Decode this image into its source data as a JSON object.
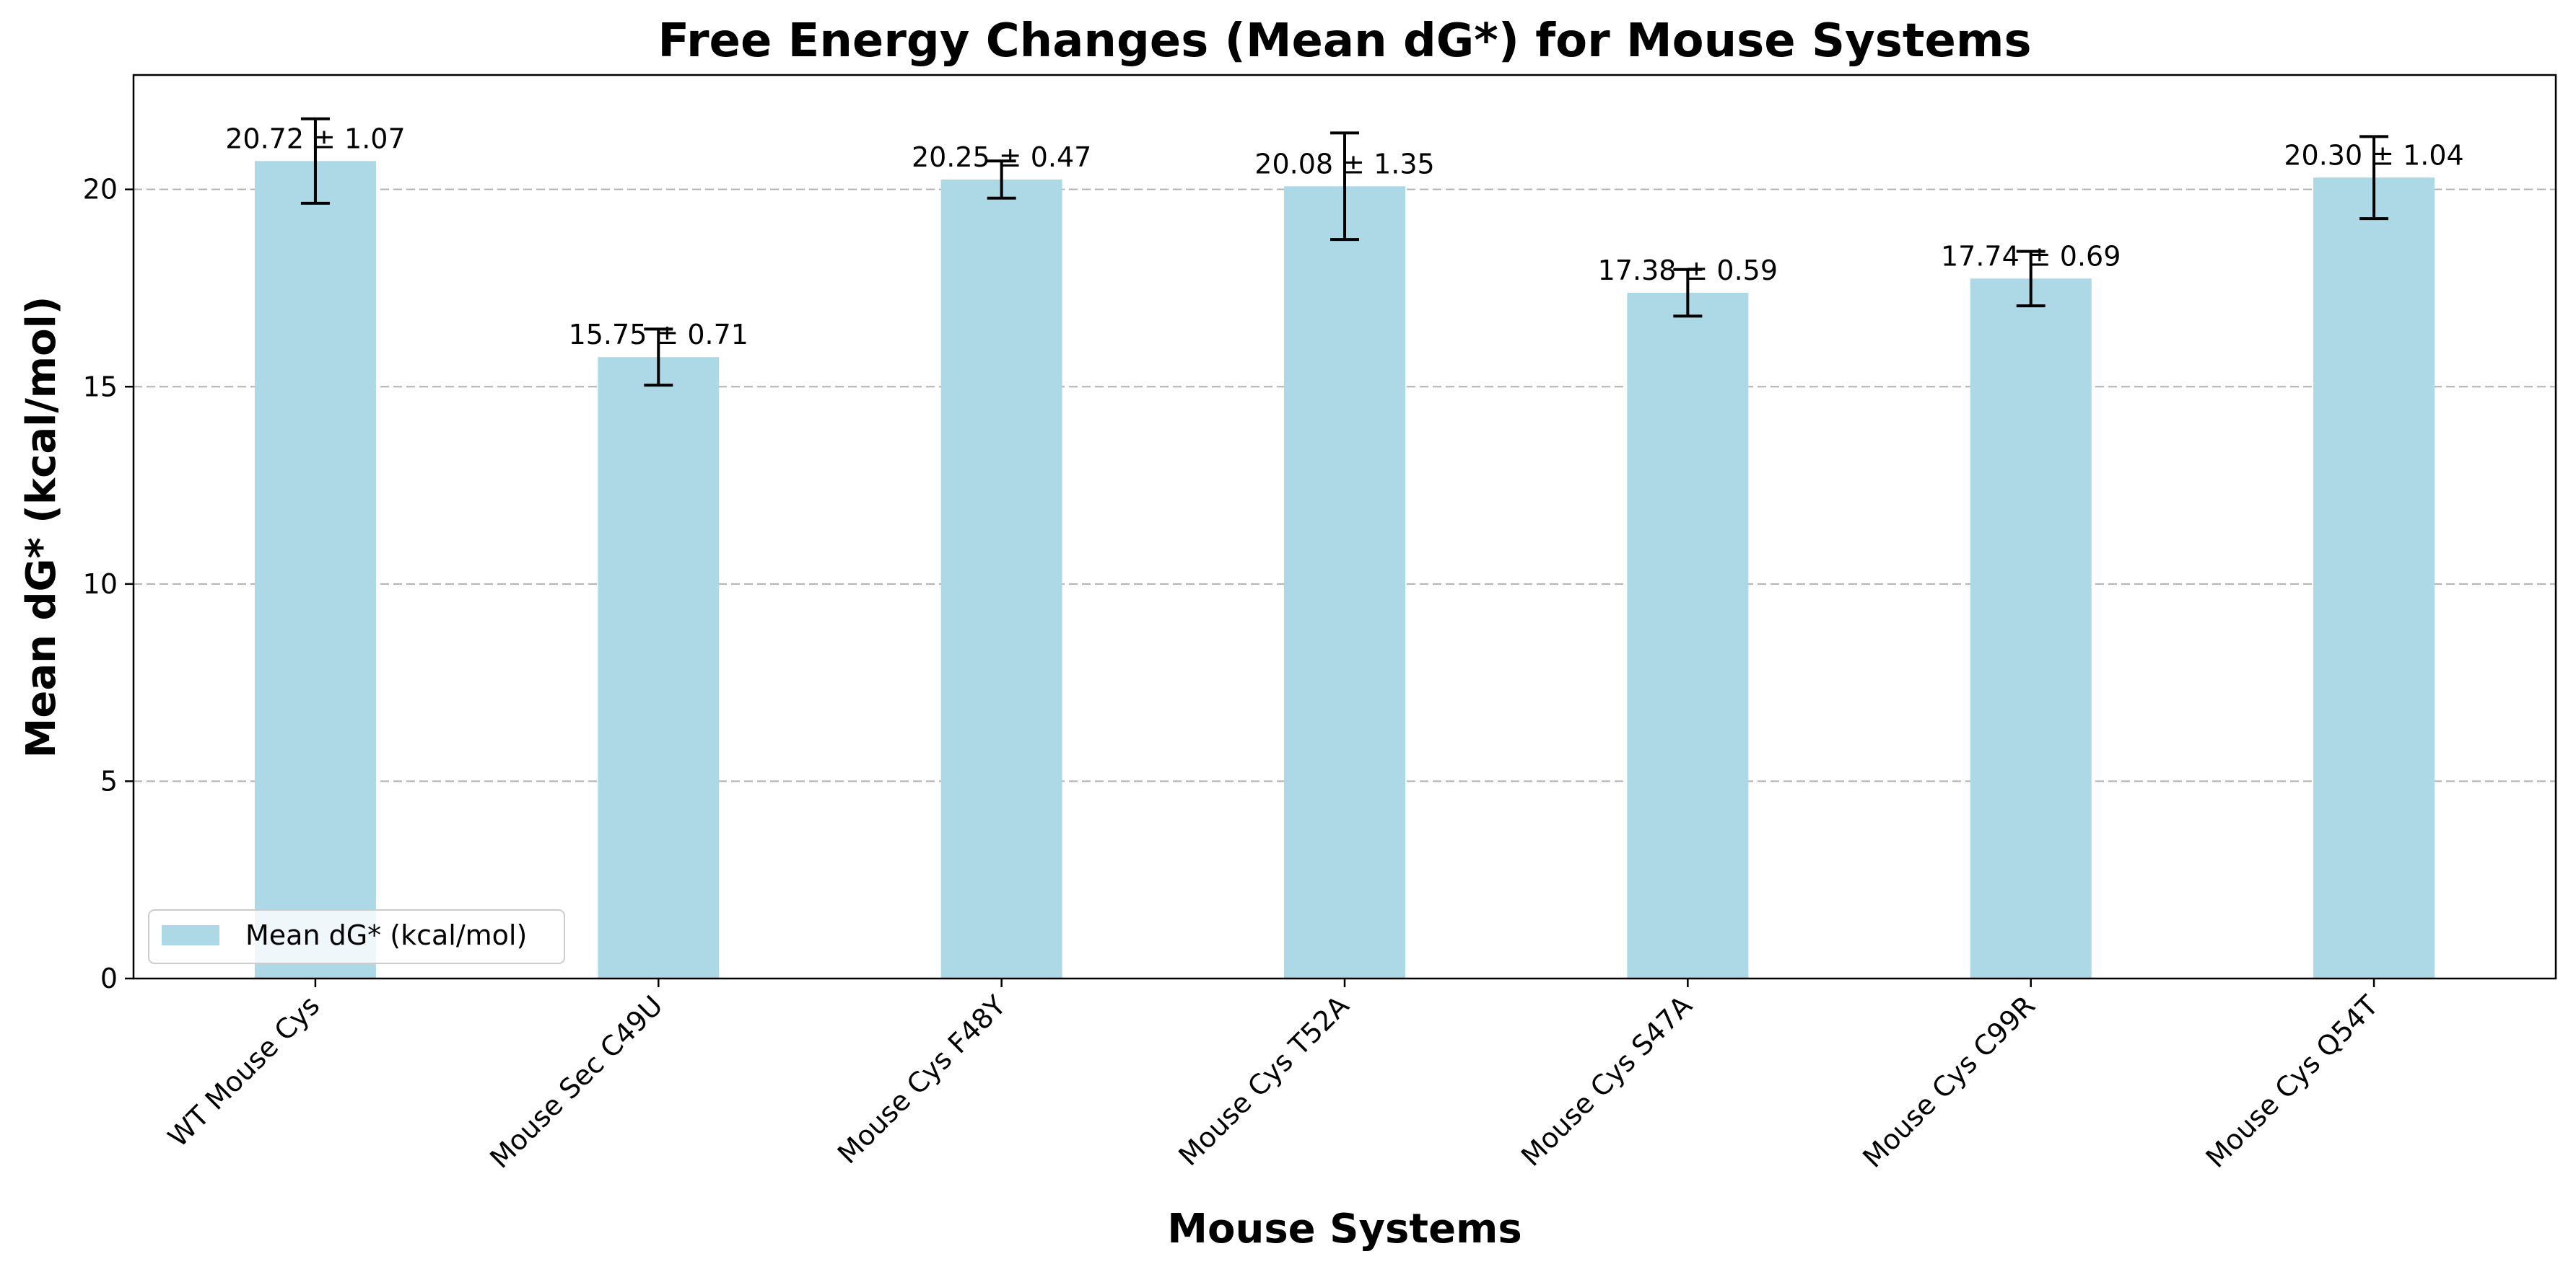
{
  "chart_data": {
    "type": "bar",
    "title": "Free Energy Changes (Mean dG*) for Mouse Systems",
    "xlabel": "Mouse Systems",
    "ylabel": "Mean dG* (kcal/mol)",
    "categories": [
      "WT Mouse Cys",
      "Mouse Sec C49U",
      "Mouse Cys F48Y",
      "Mouse Cys T52A",
      "Mouse Cys S47A",
      "Mouse Cys C99R",
      "Mouse Cys Q54T"
    ],
    "series": [
      {
        "name": "Mean dG* (kcal/mol)",
        "values": [
          20.72,
          15.75,
          20.25,
          20.08,
          17.38,
          17.74,
          20.3
        ],
        "errors": [
          1.07,
          0.71,
          0.47,
          1.35,
          0.59,
          0.69,
          1.04
        ],
        "color": "#add8e6"
      }
    ],
    "value_labels": [
      "20.72 ± 1.07",
      "15.75 ± 0.71",
      "20.25 ± 0.47",
      "20.08 ± 1.35",
      "17.38 ± 0.59",
      "17.74 ± 0.69",
      "20.30 ± 1.04"
    ],
    "ylim": [
      0,
      22.9
    ],
    "yticks": [
      0,
      5,
      10,
      15,
      20
    ],
    "ytick_labels": [
      "0",
      "5",
      "10",
      "15",
      "20"
    ],
    "grid": "y-dashed",
    "legend_position": "lower-left"
  }
}
